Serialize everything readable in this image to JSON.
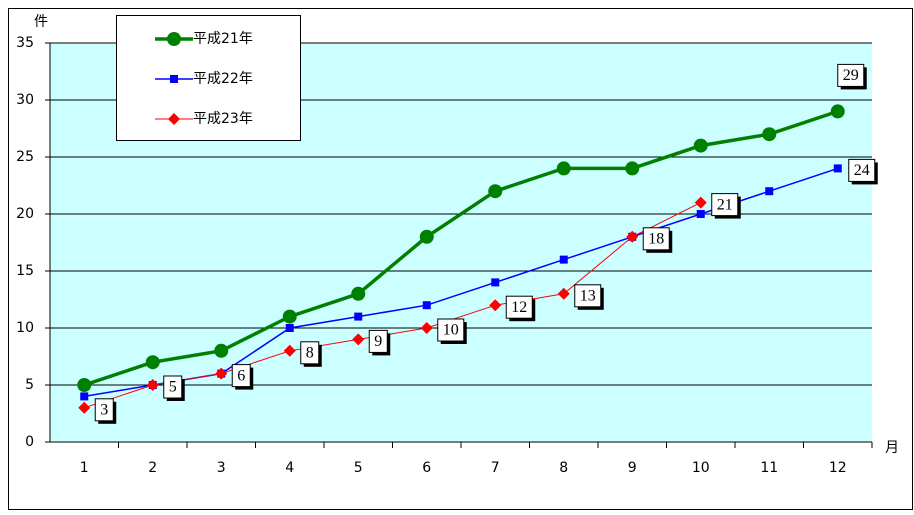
{
  "chart_data": {
    "type": "line",
    "y_unit": "件",
    "x_unit": "月",
    "categories": [
      "1",
      "2",
      "3",
      "4",
      "5",
      "6",
      "7",
      "8",
      "9",
      "10",
      "11",
      "12"
    ],
    "ylim": [
      0,
      35
    ],
    "yticks": [
      0,
      5,
      10,
      15,
      20,
      25,
      30,
      35
    ],
    "grid": true,
    "background": "#ccffff",
    "legend": "upper-left",
    "series": [
      {
        "name": "平成21年",
        "color": "#008000",
        "marker": "circle",
        "data_labels": "last",
        "label_position": "above",
        "values": [
          5,
          7,
          8,
          11,
          13,
          18,
          22,
          24,
          24,
          26,
          27,
          29
        ]
      },
      {
        "name": "平成22年",
        "color": "#0000ff",
        "marker": "square",
        "data_labels": "last",
        "label_position": "right",
        "values": [
          4,
          5,
          6,
          10,
          11,
          12,
          14,
          16,
          18,
          20,
          22,
          24
        ]
      },
      {
        "name": "平成23年",
        "color": "#ff0000",
        "marker": "diamond",
        "data_labels": "all",
        "label_position": "right",
        "values": [
          3,
          5,
          6,
          8,
          9,
          10,
          12,
          13,
          18,
          21,
          null,
          null
        ]
      }
    ]
  }
}
